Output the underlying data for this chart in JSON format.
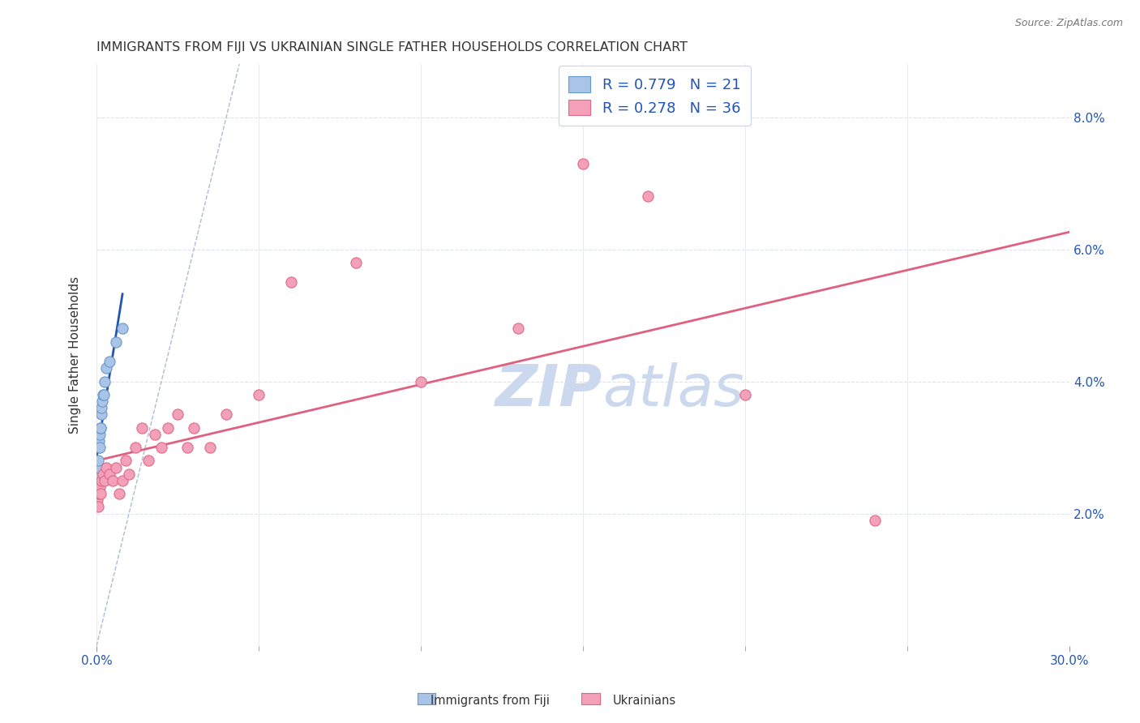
{
  "title": "IMMIGRANTS FROM FIJI VS UKRAINIAN SINGLE FATHER HOUSEHOLDS CORRELATION CHART",
  "source": "Source: ZipAtlas.com",
  "ylabel": "Single Father Households",
  "x_tick_labels_edge": [
    "0.0%",
    "30.0%"
  ],
  "y_tick_labels_right": [
    "2.0%",
    "4.0%",
    "6.0%",
    "8.0%"
  ],
  "xlim": [
    0.0,
    0.3
  ],
  "ylim": [
    0.0,
    0.088
  ],
  "fiji_x": [
    0.0002,
    0.0003,
    0.0004,
    0.0005,
    0.0006,
    0.0007,
    0.0008,
    0.0009,
    0.001,
    0.0012,
    0.0013,
    0.0015,
    0.0016,
    0.0018,
    0.002,
    0.0022,
    0.0025,
    0.003,
    0.004,
    0.006,
    0.008
  ],
  "fiji_y": [
    0.025,
    0.026,
    0.027,
    0.027,
    0.028,
    0.03,
    0.031,
    0.03,
    0.032,
    0.033,
    0.033,
    0.035,
    0.036,
    0.037,
    0.038,
    0.038,
    0.04,
    0.042,
    0.043,
    0.046,
    0.048
  ],
  "ukr_x": [
    0.0003,
    0.0005,
    0.0007,
    0.001,
    0.0013,
    0.0015,
    0.002,
    0.0025,
    0.003,
    0.004,
    0.005,
    0.006,
    0.007,
    0.008,
    0.009,
    0.01,
    0.012,
    0.014,
    0.016,
    0.018,
    0.02,
    0.022,
    0.025,
    0.028,
    0.03,
    0.035,
    0.04,
    0.05,
    0.06,
    0.08,
    0.1,
    0.13,
    0.15,
    0.17,
    0.2,
    0.24
  ],
  "ukr_y": [
    0.022,
    0.021,
    0.023,
    0.024,
    0.023,
    0.025,
    0.026,
    0.025,
    0.027,
    0.026,
    0.025,
    0.027,
    0.023,
    0.025,
    0.028,
    0.026,
    0.03,
    0.033,
    0.028,
    0.032,
    0.03,
    0.033,
    0.035,
    0.03,
    0.033,
    0.03,
    0.035,
    0.038,
    0.055,
    0.058,
    0.04,
    0.048,
    0.073,
    0.068,
    0.038,
    0.019
  ],
  "fiji_color": "#aac4e8",
  "fiji_edge_color": "#6699cc",
  "ukr_color": "#f4a0b8",
  "ukr_edge_color": "#e06888",
  "fiji_line_color": "#2255aa",
  "ukr_line_color": "#e06080",
  "diag_line_color": "#99aac8",
  "background_color": "#ffffff",
  "grid_color": "#dde4f0",
  "r_fiji": 0.779,
  "n_fiji": 21,
  "r_ukr": 0.278,
  "n_ukr": 36,
  "legend_text_color": "#2255bb",
  "watermark_color": "#ccd8ee",
  "legend_labels": [
    "Immigrants from Fiji",
    "Ukrainians"
  ]
}
